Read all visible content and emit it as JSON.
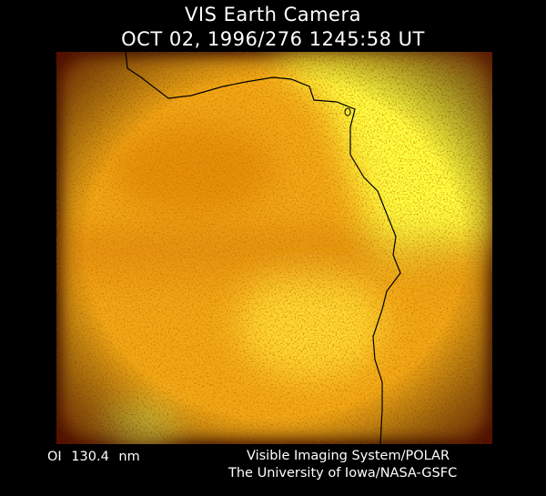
{
  "header": {
    "title": "VIS Earth Camera",
    "timestamp": "OCT 02, 1996/276 1245:58 UT"
  },
  "image": {
    "description_colors": {
      "dark": "#b84800",
      "mid": "#f0a010",
      "bright": "#ffff30",
      "coastline": "#000000"
    }
  },
  "footer": {
    "band": "OI  130.4 nm",
    "credit_line1": "Visible Imaging System/POLAR",
    "credit_line2": "The University of Iowa/NASA-GSFC"
  }
}
